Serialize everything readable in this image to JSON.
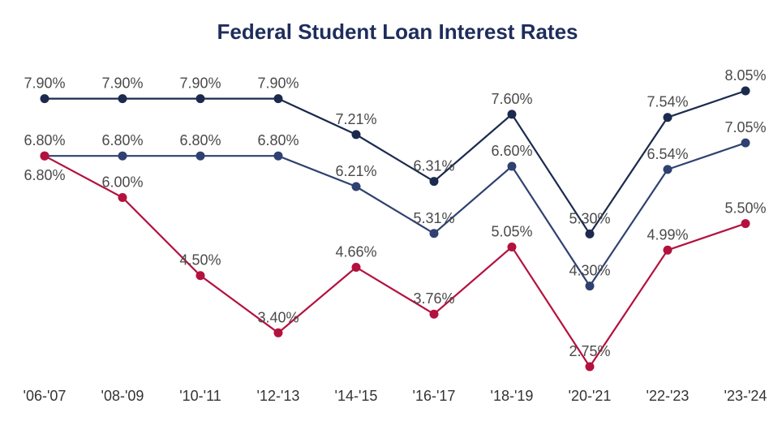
{
  "chart_data": {
    "type": "line",
    "title": "Federal Student Loan Interest Rates",
    "xlabel": "",
    "ylabel": "",
    "categories": [
      "'06-'07",
      "'08-'09",
      "'10-'11",
      "'12-'13",
      "'14-'15",
      "'16-'17",
      "'18-'19",
      "'20-'21",
      "'22-'23",
      "'23-'24"
    ],
    "series": [
      {
        "color": "#1b2a4e",
        "values": [
          7.9,
          7.9,
          7.9,
          7.9,
          7.21,
          6.31,
          7.6,
          5.3,
          7.54,
          8.05
        ],
        "labels": [
          "7.90%",
          "7.90%",
          "7.90%",
          "7.90%",
          "7.21%",
          "6.31%",
          "7.60%",
          "5.30%",
          "7.54%",
          "8.05%"
        ]
      },
      {
        "color": "#2f4170",
        "values": [
          6.8,
          6.8,
          6.8,
          6.8,
          6.21,
          5.31,
          6.6,
          4.3,
          6.54,
          7.05
        ],
        "labels": [
          "6.80%",
          "6.80%",
          "6.80%",
          "6.80%",
          "6.21%",
          "5.31%",
          "6.60%",
          "4.30%",
          "6.54%",
          "7.05%"
        ]
      },
      {
        "color": "#b3123e",
        "values": [
          6.8,
          6.0,
          4.5,
          3.4,
          4.66,
          3.76,
          5.05,
          2.75,
          4.99,
          5.5
        ],
        "labels": [
          "6.80%",
          "6.00%",
          "4.50%",
          "3.40%",
          "4.66%",
          "3.76%",
          "5.05%",
          "2.75%",
          "4.99%",
          "5.50%"
        ]
      }
    ],
    "ylim": [
      2.75,
      8.05
    ],
    "grid": false,
    "legend": "none",
    "title_color": "#1e2d5c"
  }
}
